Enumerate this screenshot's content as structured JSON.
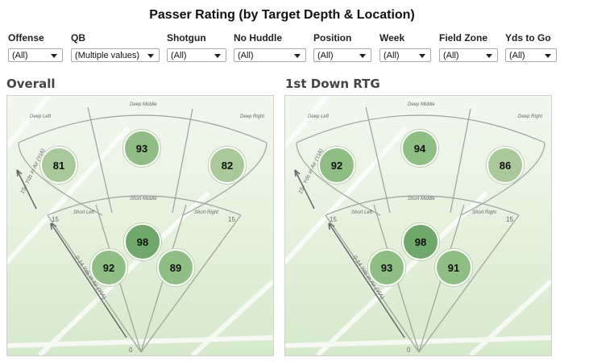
{
  "title": "Passer Rating (by Target Depth & Location)",
  "filters": [
    {
      "label": "Offense",
      "value": "(All)"
    },
    {
      "label": "QB",
      "value": "(Multiple values)"
    },
    {
      "label": "Shotgun",
      "value": "(All)"
    },
    {
      "label": "No Huddle",
      "value": "(All)"
    },
    {
      "label": "Position",
      "value": "(All)"
    },
    {
      "label": "Week",
      "value": "(All)"
    },
    {
      "label": "Field Zone",
      "value": "(All)"
    },
    {
      "label": "Yds to Go",
      "value": "(All)"
    }
  ],
  "field_labels": {
    "deep_middle": "Deep Middle",
    "deep_left": "Deep Left",
    "deep_right": "Deep Right",
    "short_middle": "Short Middle",
    "short_left": "Short Left",
    "short_right": "Short Right",
    "deep_axis": "15+ Yds in Air (YIA)",
    "short_axis": "0-14 Yds in Air (YIA)",
    "yard_15": "15",
    "yard_0": "0"
  },
  "panels": [
    {
      "title": "Overall",
      "ratings": {
        "deep_left": "81",
        "deep_middle": "93",
        "deep_right": "82",
        "short_left": "92",
        "short_middle": "98",
        "short_right": "89"
      }
    },
    {
      "title": "1st Down RTG",
      "ratings": {
        "deep_left": "92",
        "deep_middle": "94",
        "deep_right": "86",
        "short_left": "93",
        "short_middle": "98",
        "short_right": "91"
      }
    }
  ],
  "colors": {
    "bubble_light": "#a9c99b",
    "bubble_mid": "#8fbe84",
    "bubble_dark": "#6fa86a"
  }
}
